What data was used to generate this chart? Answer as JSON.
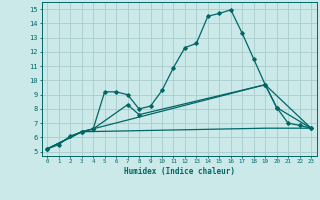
{
  "background_color": "#cce9e9",
  "grid_color": "#aacccc",
  "line_color": "#006666",
  "xlabel": "Humidex (Indice chaleur)",
  "xlim": [
    -0.5,
    23.5
  ],
  "ylim": [
    4.7,
    15.5
  ],
  "xticks": [
    0,
    1,
    2,
    3,
    4,
    5,
    6,
    7,
    8,
    9,
    10,
    11,
    12,
    13,
    14,
    15,
    16,
    17,
    18,
    19,
    20,
    21,
    22,
    23
  ],
  "yticks": [
    5,
    6,
    7,
    8,
    9,
    10,
    11,
    12,
    13,
    14,
    15
  ],
  "curve1_x": [
    0,
    1,
    2,
    3,
    4,
    5,
    6,
    7,
    8,
    9,
    10,
    11,
    12,
    13,
    14,
    15,
    16,
    17,
    18,
    19,
    20,
    21,
    22,
    23
  ],
  "curve1_y": [
    5.2,
    5.5,
    6.1,
    6.4,
    6.6,
    9.2,
    9.2,
    9.0,
    8.0,
    8.2,
    9.3,
    10.9,
    12.3,
    12.6,
    14.5,
    14.7,
    14.95,
    13.3,
    11.5,
    9.7,
    8.1,
    7.0,
    6.85,
    6.65
  ],
  "curve2_x": [
    0,
    3,
    4,
    7,
    8,
    19,
    20,
    23
  ],
  "curve2_y": [
    5.2,
    6.4,
    6.6,
    8.3,
    7.6,
    9.7,
    8.1,
    6.65
  ],
  "line1_x": [
    0,
    3,
    19,
    23
  ],
  "line1_y": [
    5.2,
    6.4,
    9.7,
    6.65
  ],
  "line2_x": [
    0,
    3,
    19,
    23
  ],
  "line2_y": [
    5.2,
    6.4,
    6.65,
    6.65
  ]
}
